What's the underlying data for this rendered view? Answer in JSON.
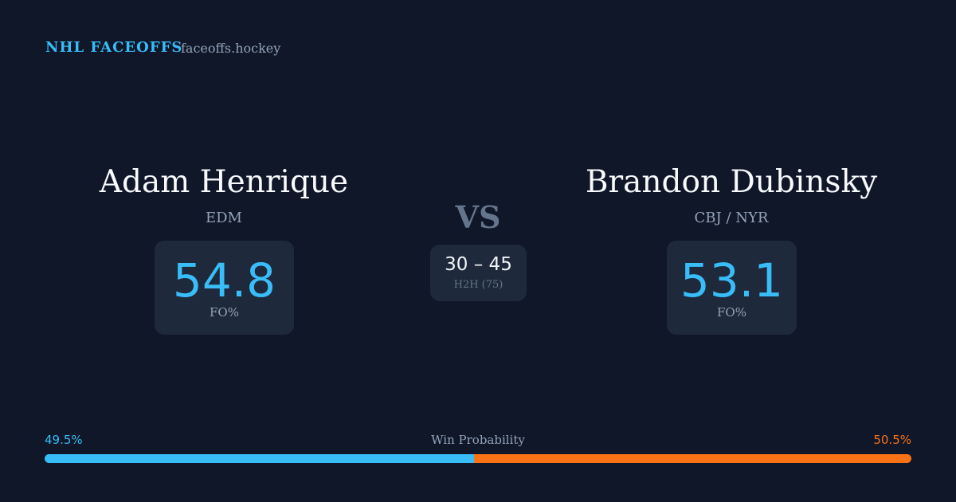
{
  "header": {
    "brand": "NHL FACEOFFS",
    "site": "faceoffs.hockey"
  },
  "players": [
    {
      "name": "Adam Henrique",
      "team": "EDM",
      "fo_pct": 54.8,
      "fo_label": "FO%"
    },
    {
      "name": "Brandon Dubinsky",
      "team": "CBJ / NYR",
      "fo_pct": 53.1,
      "fo_label": "FO%"
    }
  ],
  "vs": "VS",
  "head_to_head": {
    "score": "30 – 45",
    "label": "H2H (75)"
  },
  "win_probability": {
    "title": "Win Probability",
    "left": {
      "value": 49.5,
      "label": "49.5%",
      "color": "#38bdf8"
    },
    "right": {
      "value": 50.5,
      "label": "50.5%",
      "color": "#f97316"
    }
  }
}
